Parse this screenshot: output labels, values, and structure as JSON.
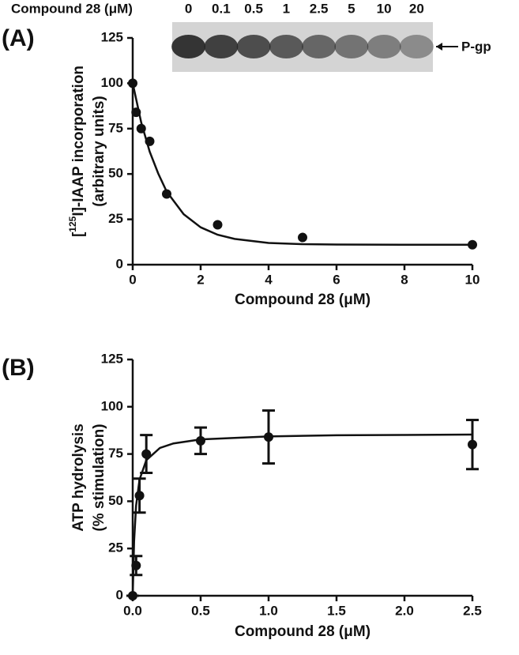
{
  "chart_data": [
    {
      "type": "scatter",
      "panel": "(A)",
      "xlabel": "Compound 28 (μM)",
      "ylabel": {
        "prefix": "[",
        "superscript": "125",
        "rest": "I]-IAAP incorporation",
        "line2": "(arbitrary units)"
      },
      "x": [
        0,
        0.1,
        0.25,
        0.5,
        1,
        2.5,
        5,
        10
      ],
      "values": [
        100,
        84,
        75,
        68,
        39,
        22,
        15,
        11
      ],
      "fit": {
        "x": [
          0,
          0.25,
          0.5,
          0.75,
          1,
          1.5,
          2,
          2.5,
          3,
          4,
          5,
          6,
          8,
          10
        ],
        "values": [
          100,
          78.4,
          62.3,
          50.3,
          40.3,
          27.8,
          20.6,
          16.5,
          14.2,
          12.0,
          11.3,
          11.1,
          11,
          11
        ]
      },
      "xlim": [
        0,
        10
      ],
      "xticks": [
        0,
        2,
        4,
        6,
        8,
        10
      ],
      "ylim": [
        0,
        125
      ],
      "yticks": [
        0,
        25,
        50,
        75,
        100,
        125
      ],
      "gel": {
        "label": "Compound 28 (μM)",
        "lanes": [
          "0",
          "0.1",
          "0.5",
          "1",
          "2.5",
          "5",
          "10",
          "20"
        ],
        "band_label": "P-gp"
      }
    },
    {
      "type": "scatter",
      "panel": "(B)",
      "xlabel": "Compound 28 (μM)",
      "ylabel": {
        "line1": "ATP hydrolysis",
        "line2": "(% stimulation)"
      },
      "x": [
        0,
        0.025,
        0.05,
        0.1,
        0.5,
        1,
        2.5
      ],
      "values": [
        0,
        16,
        53,
        75,
        82,
        84,
        80
      ],
      "errors": [
        0,
        5,
        9,
        10,
        7,
        14,
        13
      ],
      "fit": {
        "x": [
          0,
          0.01,
          0.025,
          0.05,
          0.1,
          0.2,
          0.3,
          0.5,
          1,
          1.5,
          2,
          2.5
        ],
        "values": [
          0,
          28.7,
          47.8,
          61.4,
          71.7,
          78.2,
          80.6,
          82.7,
          84.3,
          84.9,
          85.1,
          85.3
        ]
      },
      "xlim": [
        0,
        2.5
      ],
      "xticks": [
        {
          "value": 0,
          "label": "0.0"
        },
        {
          "value": 0.5,
          "label": "0.5"
        },
        {
          "value": 1,
          "label": "1.0"
        },
        {
          "value": 1.5,
          "label": "1.5"
        },
        {
          "value": 2,
          "label": "2.0"
        },
        {
          "value": 2.5,
          "label": "2.5"
        }
      ],
      "ylim": [
        0,
        125
      ],
      "yticks": [
        0,
        25,
        50,
        75,
        100,
        125
      ]
    }
  ]
}
